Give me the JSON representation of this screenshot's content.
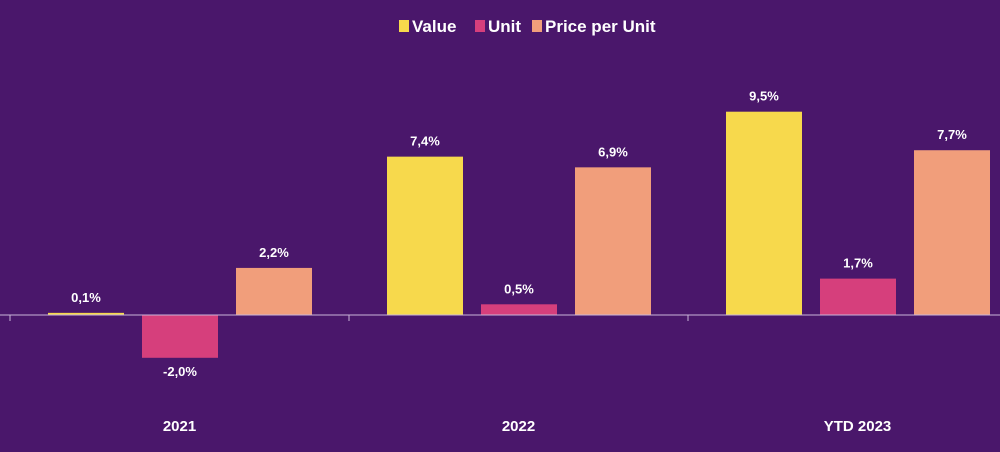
{
  "chart_data": {
    "type": "bar",
    "categories": [
      "2021",
      "2022",
      "YTD 2023"
    ],
    "series": [
      {
        "name": "Value",
        "color": "#f7d94c",
        "values": [
          0.1,
          7.4,
          9.5
        ],
        "labels": [
          "0,1%",
          "7,4%",
          "9,5%"
        ]
      },
      {
        "name": "Unit",
        "color": "#d63f7c",
        "values": [
          -2.0,
          0.5,
          1.7
        ],
        "labels": [
          "-2,0%",
          "0,5%",
          "1,7%"
        ]
      },
      {
        "name": "Price per Unit",
        "color": "#f19e7b",
        "values": [
          2.2,
          6.9,
          7.7
        ],
        "labels": [
          "2,2%",
          "6,9%",
          "7,7%"
        ]
      }
    ],
    "legend_position": "top-center",
    "grid": false,
    "background": "#4a176b",
    "axis_color": "#c9b6d9",
    "text_color": "#ffffff"
  }
}
